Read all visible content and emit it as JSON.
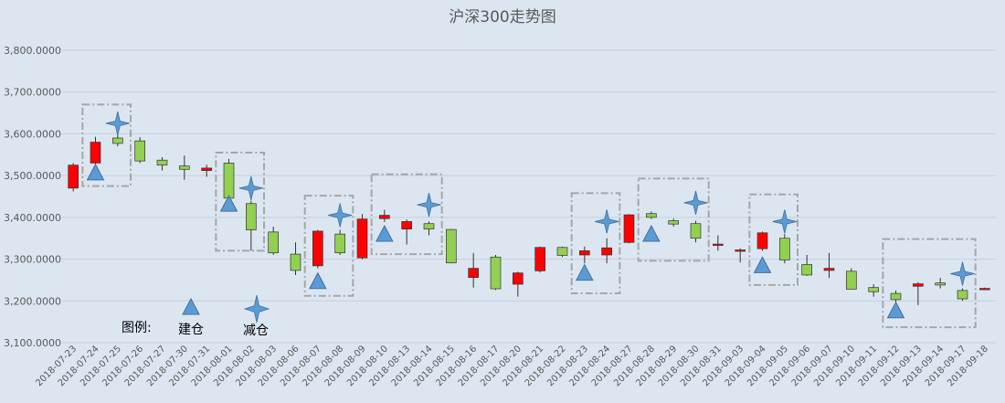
{
  "chart_data": {
    "type": "candlestick",
    "title": "沪深300走势图",
    "ylim": [
      3100,
      3800
    ],
    "yticks": [
      "3,100.0000",
      "3,200.0000",
      "3,300.0000",
      "3,400.0000",
      "3,500.0000",
      "3,600.0000",
      "3,700.0000",
      "3,800.0000"
    ],
    "ytick_values": [
      3100,
      3200,
      3300,
      3400,
      3500,
      3600,
      3700,
      3800
    ],
    "grid": true,
    "colors": {
      "up": "#ff0000",
      "down": "#92d050",
      "outline": "#333333",
      "marker": "#5b9bd5",
      "box": "#a6a6a6"
    },
    "dates": [
      "2018-07-23",
      "2018-07-24",
      "2018-07-25",
      "2018-07-26",
      "2018-07-27",
      "2018-07-30",
      "2018-07-31",
      "2018-08-01",
      "2018-08-02",
      "2018-08-03",
      "2018-08-06",
      "2018-08-07",
      "2018-08-08",
      "2018-08-09",
      "2018-08-10",
      "2018-08-13",
      "2018-08-14",
      "2018-08-15",
      "2018-08-16",
      "2018-08-17",
      "2018-08-20",
      "2018-08-21",
      "2018-08-22",
      "2018-08-23",
      "2018-08-24",
      "2018-08-27",
      "2018-08-28",
      "2018-08-29",
      "2018-08-30",
      "2018-08-31",
      "2018-09-03",
      "2018-09-04",
      "2018-09-05",
      "2018-09-06",
      "2018-09-07",
      "2018-09-10",
      "2018-09-11",
      "2018-09-12",
      "2018-09-13",
      "2018-09-14",
      "2018-09-17",
      "2018-09-18"
    ],
    "candles": [
      {
        "o": 3470,
        "h": 3530,
        "l": 3462,
        "c": 3525
      },
      {
        "o": 3530,
        "h": 3593,
        "l": 3525,
        "c": 3580
      },
      {
        "o": 3590,
        "h": 3600,
        "l": 3570,
        "c": 3577
      },
      {
        "o": 3583,
        "h": 3592,
        "l": 3530,
        "c": 3535
      },
      {
        "o": 3537,
        "h": 3544,
        "l": 3512,
        "c": 3525
      },
      {
        "o": 3523,
        "h": 3548,
        "l": 3490,
        "c": 3515
      },
      {
        "o": 3512,
        "h": 3526,
        "l": 3497,
        "c": 3518
      },
      {
        "o": 3530,
        "h": 3540,
        "l": 3440,
        "c": 3446
      },
      {
        "o": 3433,
        "h": 3440,
        "l": 3320,
        "c": 3370
      },
      {
        "o": 3365,
        "h": 3378,
        "l": 3310,
        "c": 3315
      },
      {
        "o": 3312,
        "h": 3340,
        "l": 3262,
        "c": 3273
      },
      {
        "o": 3284,
        "h": 3370,
        "l": 3278,
        "c": 3367
      },
      {
        "o": 3360,
        "h": 3370,
        "l": 3310,
        "c": 3315
      },
      {
        "o": 3303,
        "h": 3408,
        "l": 3300,
        "c": 3396
      },
      {
        "o": 3397,
        "h": 3418,
        "l": 3389,
        "c": 3405
      },
      {
        "o": 3372,
        "h": 3395,
        "l": 3335,
        "c": 3390
      },
      {
        "o": 3385,
        "h": 3390,
        "l": 3357,
        "c": 3372
      },
      {
        "o": 3371,
        "h": 3372,
        "l": 3290,
        "c": 3291
      },
      {
        "o": 3256,
        "h": 3315,
        "l": 3232,
        "c": 3278
      },
      {
        "o": 3305,
        "h": 3310,
        "l": 3226,
        "c": 3229
      },
      {
        "o": 3240,
        "h": 3270,
        "l": 3210,
        "c": 3267
      },
      {
        "o": 3272,
        "h": 3330,
        "l": 3268,
        "c": 3328
      },
      {
        "o": 3328,
        "h": 3330,
        "l": 3305,
        "c": 3309
      },
      {
        "o": 3310,
        "h": 3330,
        "l": 3290,
        "c": 3320
      },
      {
        "o": 3310,
        "h": 3350,
        "l": 3290,
        "c": 3327
      },
      {
        "o": 3340,
        "h": 3408,
        "l": 3338,
        "c": 3406
      },
      {
        "o": 3409,
        "h": 3414,
        "l": 3396,
        "c": 3400
      },
      {
        "o": 3392,
        "h": 3397,
        "l": 3378,
        "c": 3384
      },
      {
        "o": 3385,
        "h": 3392,
        "l": 3340,
        "c": 3350
      },
      {
        "o": 3333,
        "h": 3357,
        "l": 3320,
        "c": 3336
      },
      {
        "o": 3320,
        "h": 3326,
        "l": 3292,
        "c": 3322
      },
      {
        "o": 3325,
        "h": 3366,
        "l": 3320,
        "c": 3363
      },
      {
        "o": 3350,
        "h": 3360,
        "l": 3290,
        "c": 3298
      },
      {
        "o": 3287,
        "h": 3310,
        "l": 3260,
        "c": 3262
      },
      {
        "o": 3273,
        "h": 3315,
        "l": 3255,
        "c": 3278
      },
      {
        "o": 3271,
        "h": 3278,
        "l": 3228,
        "c": 3228
      },
      {
        "o": 3232,
        "h": 3240,
        "l": 3210,
        "c": 3222
      },
      {
        "o": 3218,
        "h": 3225,
        "l": 3170,
        "c": 3203
      },
      {
        "o": 3235,
        "h": 3245,
        "l": 3190,
        "c": 3241
      },
      {
        "o": 3243,
        "h": 3255,
        "l": 3230,
        "c": 3238
      },
      {
        "o": 3225,
        "h": 3230,
        "l": 3200,
        "c": 3205
      },
      {
        "o": 3230,
        "h": 3232,
        "l": 3228,
        "c": 3230
      }
    ],
    "build_markers": [
      {
        "i": 1,
        "y": 3505
      },
      {
        "i": 7,
        "y": 3430
      },
      {
        "i": 11,
        "y": 3245
      },
      {
        "i": 14,
        "y": 3358
      },
      {
        "i": 23,
        "y": 3265
      },
      {
        "i": 26,
        "y": 3358
      },
      {
        "i": 31,
        "y": 3283
      },
      {
        "i": 37,
        "y": 3175
      }
    ],
    "reduce_markers": [
      {
        "i": 2,
        "y": 3625
      },
      {
        "i": 8,
        "y": 3470
      },
      {
        "i": 12,
        "y": 3405
      },
      {
        "i": 16,
        "y": 3430
      },
      {
        "i": 24,
        "y": 3390
      },
      {
        "i": 28,
        "y": 3435
      },
      {
        "i": 32,
        "y": 3390
      },
      {
        "i": 40,
        "y": 3265
      }
    ],
    "boxes": [
      {
        "i0": 1,
        "i1": 2,
        "top": 3670,
        "bottom": 3475
      },
      {
        "i0": 7,
        "i1": 8,
        "top": 3555,
        "bottom": 3320
      },
      {
        "i0": 11,
        "i1": 12,
        "top": 3452,
        "bottom": 3212
      },
      {
        "i0": 14,
        "i1": 16,
        "top": 3503,
        "bottom": 3312
      },
      {
        "i0": 23,
        "i1": 24,
        "top": 3458,
        "bottom": 3218
      },
      {
        "i0": 26,
        "i1": 28,
        "top": 3493,
        "bottom": 3296
      },
      {
        "i0": 31,
        "i1": 32,
        "top": 3455,
        "bottom": 3238
      },
      {
        "i0": 37,
        "i1": 40,
        "top": 3348,
        "bottom": 3137
      }
    ],
    "legend": {
      "title": "图例:",
      "build_label": "建仓",
      "reduce_label": "减仓",
      "placement": "bottom-left"
    }
  }
}
